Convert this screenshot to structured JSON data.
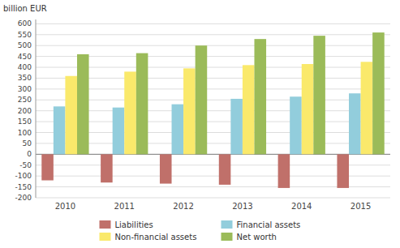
{
  "chart_data": {
    "type": "bar",
    "y_label": "billion EUR",
    "categories": [
      "2010",
      "2011",
      "2012",
      "2013",
      "2014",
      "2015"
    ],
    "series": [
      {
        "name": "Liabilities",
        "color": "#C0706A",
        "values": [
          -120,
          -130,
          -135,
          -140,
          -155,
          -155
        ]
      },
      {
        "name": "Financial assets",
        "color": "#92CDDC",
        "values": [
          220,
          215,
          230,
          255,
          265,
          280
        ]
      },
      {
        "name": "Non-financial assets",
        "color": "#FAE96B",
        "values": [
          360,
          380,
          395,
          410,
          415,
          425
        ]
      },
      {
        "name": "Net worth",
        "color": "#9BBB59",
        "values": [
          460,
          465,
          500,
          530,
          545,
          560
        ]
      }
    ],
    "ylim": [
      -200,
      620
    ],
    "yticks": [
      -200,
      -150,
      -100,
      -50,
      0,
      50,
      100,
      150,
      200,
      250,
      300,
      350,
      400,
      450,
      500,
      550,
      600
    ],
    "grid": true,
    "legend": "bottom"
  }
}
